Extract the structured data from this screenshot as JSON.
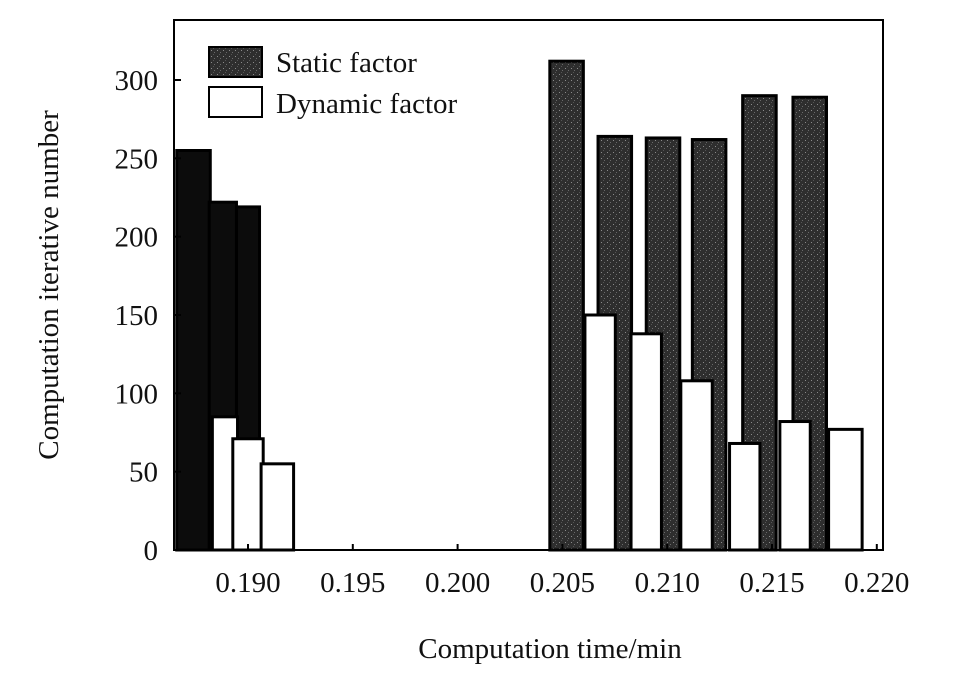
{
  "chart_data": {
    "type": "bar",
    "title": "",
    "xlabel": "Computation time/min",
    "ylabel": "Computation iterative number",
    "xlim": [
      0.1865,
      0.22
    ],
    "ylim": [
      0,
      330
    ],
    "xticks": [
      "0.190",
      "0.195",
      "0.200",
      "0.205",
      "0.210",
      "0.215",
      "0.220"
    ],
    "xtick_values": [
      0.19,
      0.195,
      0.2,
      0.205,
      0.21,
      0.215,
      0.22
    ],
    "yticks": [
      "0",
      "50",
      "100",
      "150",
      "200",
      "250",
      "300"
    ],
    "ytick_values": [
      0,
      50,
      100,
      150,
      200,
      250,
      300
    ],
    "grid": false,
    "legend_position": "top-left",
    "series": [
      {
        "name": "Static factor",
        "color": "#2b2b2b",
        "bars": [
          {
            "x": 0.1874,
            "w": 0.0016,
            "value": 255,
            "color": "#0c0c0c"
          },
          {
            "x": 0.1888,
            "w": 0.0013,
            "value": 222,
            "color": "#0c0c0c"
          },
          {
            "x": 0.19,
            "w": 0.0011,
            "value": 219,
            "color": "#0c0c0c"
          },
          {
            "x": 0.2052,
            "w": 0.0016,
            "value": 312
          },
          {
            "x": 0.2075,
            "w": 0.0016,
            "value": 264
          },
          {
            "x": 0.2098,
            "w": 0.0016,
            "value": 263
          },
          {
            "x": 0.212,
            "w": 0.0016,
            "value": 262
          },
          {
            "x": 0.2144,
            "w": 0.0016,
            "value": 290
          },
          {
            "x": 0.2168,
            "w": 0.0016,
            "value": 289
          }
        ]
      },
      {
        "name": "Dynamic factor",
        "color": "#ffffff",
        "bars": [
          {
            "x": 0.1889,
            "w": 0.0012,
            "value": 85
          },
          {
            "x": 0.19,
            "w": 0.00145,
            "value": 71
          },
          {
            "x": 0.1914,
            "w": 0.00155,
            "value": 55
          },
          {
            "x": 0.2068,
            "w": 0.00145,
            "value": 150
          },
          {
            "x": 0.209,
            "w": 0.00145,
            "value": 138
          },
          {
            "x": 0.2114,
            "w": 0.0015,
            "value": 108
          },
          {
            "x": 0.2137,
            "w": 0.00145,
            "value": 68
          },
          {
            "x": 0.2161,
            "w": 0.00145,
            "value": 82
          },
          {
            "x": 0.2185,
            "w": 0.0016,
            "value": 77
          }
        ]
      }
    ]
  }
}
